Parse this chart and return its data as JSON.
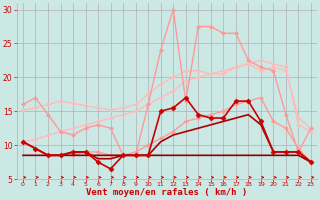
{
  "x": [
    0,
    1,
    2,
    3,
    4,
    5,
    6,
    7,
    8,
    9,
    10,
    11,
    12,
    13,
    14,
    15,
    16,
    17,
    18,
    19,
    20,
    21,
    22,
    23
  ],
  "background_color": "#cce8e4",
  "grid_color": "#b0b0b0",
  "xlabel": "Vent moyen/en rafales ( km/h )",
  "xlabel_color": "#cc0000",
  "xlabel_fontsize": 6.5,
  "tick_color": "#cc0000",
  "ylim": [
    5,
    31
  ],
  "xlim": [
    -0.5,
    23.5
  ],
  "yticks": [
    5,
    10,
    15,
    20,
    25,
    30
  ],
  "xticks": [
    0,
    1,
    2,
    3,
    4,
    5,
    6,
    7,
    8,
    9,
    10,
    11,
    12,
    13,
    14,
    15,
    16,
    17,
    18,
    19,
    20,
    21,
    22,
    23
  ],
  "lines": [
    {
      "y": [
        15.2,
        15.5,
        16.0,
        16.5,
        16.2,
        15.8,
        15.5,
        15.2,
        15.5,
        16.0,
        17.5,
        19.0,
        20.0,
        21.0,
        21.0,
        20.5,
        20.5,
        21.5,
        22.0,
        21.0,
        21.5,
        21.0,
        14.0,
        12.5
      ],
      "color": "#ffbbbb",
      "linewidth": 1.0,
      "marker": "D",
      "markersize": 1.8,
      "zorder": 2
    },
    {
      "y": [
        10.5,
        10.8,
        11.5,
        12.0,
        12.5,
        13.0,
        13.5,
        14.0,
        14.5,
        15.0,
        16.0,
        17.0,
        18.0,
        19.5,
        20.0,
        20.5,
        21.0,
        21.5,
        22.0,
        22.5,
        22.0,
        21.5,
        13.0,
        12.0
      ],
      "color": "#ffbbbb",
      "linewidth": 1.0,
      "marker": "D",
      "markersize": 1.8,
      "zorder": 2
    },
    {
      "y": [
        16.0,
        17.0,
        14.5,
        12.0,
        11.5,
        12.5,
        13.0,
        12.5,
        8.5,
        8.5,
        16.0,
        24.0,
        30.0,
        16.5,
        27.5,
        27.5,
        26.5,
        26.5,
        22.5,
        21.5,
        21.0,
        14.5,
        9.0,
        12.5
      ],
      "color": "#ff9999",
      "linewidth": 1.0,
      "marker": "D",
      "markersize": 2.0,
      "zorder": 3
    },
    {
      "y": [
        10.5,
        9.5,
        8.5,
        8.5,
        8.5,
        9.0,
        9.0,
        8.5,
        8.5,
        9.0,
        10.0,
        11.0,
        12.0,
        13.5,
        14.0,
        14.5,
        15.0,
        16.0,
        16.5,
        17.0,
        13.5,
        12.5,
        9.5,
        7.5
      ],
      "color": "#ff9999",
      "linewidth": 1.0,
      "marker": "D",
      "markersize": 2.0,
      "zorder": 3
    },
    {
      "y": [
        10.5,
        9.5,
        8.5,
        8.5,
        9.0,
        9.0,
        7.5,
        6.5,
        8.5,
        8.5,
        8.5,
        15.0,
        15.5,
        17.0,
        14.5,
        14.0,
        14.0,
        16.5,
        16.5,
        13.5,
        9.0,
        9.0,
        9.0,
        7.5
      ],
      "color": "#cc0000",
      "linewidth": 1.2,
      "marker": "D",
      "markersize": 2.5,
      "zorder": 5
    },
    {
      "y": [
        8.5,
        8.5,
        8.5,
        8.5,
        8.5,
        8.5,
        8.5,
        8.5,
        8.5,
        8.5,
        8.5,
        8.5,
        8.5,
        8.5,
        8.5,
        8.5,
        8.5,
        8.5,
        8.5,
        8.5,
        8.5,
        8.5,
        8.5,
        7.5
      ],
      "color": "#880000",
      "linewidth": 1.2,
      "marker": "None",
      "markersize": 0,
      "zorder": 4
    },
    {
      "y": [
        10.5,
        9.5,
        8.5,
        8.5,
        9.0,
        9.0,
        8.0,
        8.0,
        8.5,
        8.5,
        8.5,
        10.5,
        11.5,
        12.0,
        12.5,
        13.0,
        13.5,
        14.0,
        14.5,
        13.0,
        9.0,
        9.0,
        9.0,
        7.5
      ],
      "color": "#aa0000",
      "linewidth": 1.2,
      "marker": "None",
      "markersize": 0,
      "zorder": 4
    }
  ],
  "arrows_color": "#cc0000"
}
